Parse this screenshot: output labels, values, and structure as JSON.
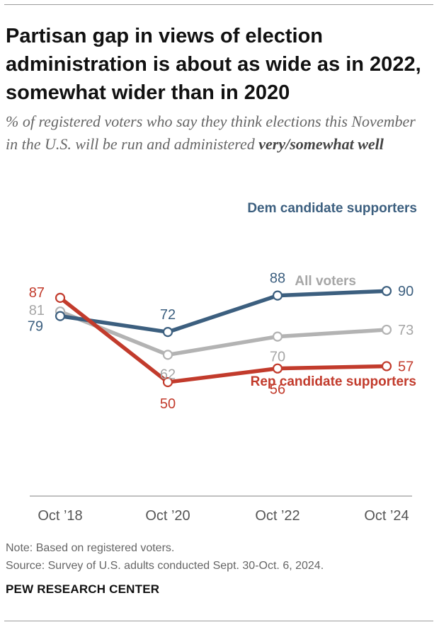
{
  "title": "Partisan gap in views of election administration is about as wide as in 2022, somewhat wider than in 2020",
  "subtitle": {
    "lead": "% of registered voters who say they think elections this November in the U.S. will be run and administered",
    "emphasis": "very/somewhat well"
  },
  "chart_data": {
    "type": "line",
    "categories": [
      "Oct ’18",
      "Oct ’20",
      "Oct ’22",
      "Oct ’24"
    ],
    "series": [
      {
        "key": "dem",
        "name": "Dem candidate supporters",
        "color": "#3c5f7f",
        "values": [
          79,
          72,
          88,
          90
        ]
      },
      {
        "key": "all",
        "name": "All voters",
        "color": "#b3b3b3",
        "label_color": "#a6a6a6",
        "values": [
          81,
          62,
          70,
          73
        ]
      },
      {
        "key": "rep",
        "name": "Rep candidate supporters",
        "color": "#c23b2c",
        "values": [
          87,
          50,
          56,
          57
        ]
      }
    ],
    "ylim": [
      0,
      100
    ],
    "grid": false
  },
  "note": "Note: Based on registered voters.",
  "source": "Source: Survey of U.S. adults conducted Sept. 30-Oct. 6, 2024.",
  "brand": "PEW RESEARCH CENTER"
}
